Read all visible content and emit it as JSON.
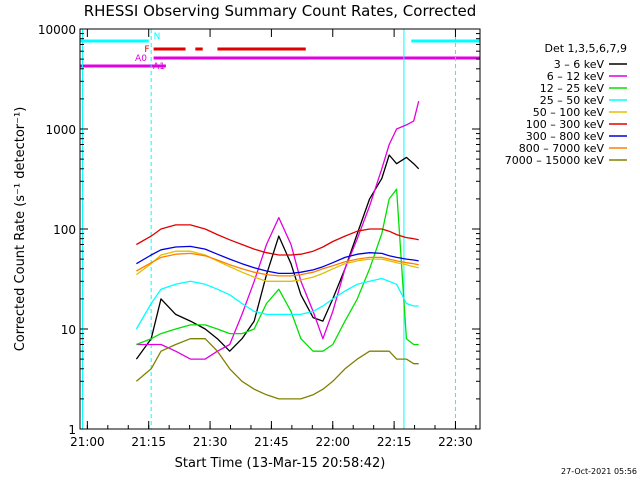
{
  "chart_data": {
    "type": "line",
    "title": "RHESSI Observing Summary Count Rates, Corrected",
    "xlabel": "Start Time (13-Mar-15 20:58:42)",
    "ylabel": "Corrected Count Rate (s⁻¹ detector⁻¹)",
    "yscale": "log",
    "ylim": [
      1,
      10000
    ],
    "xlim_minutes": [
      20.97,
      22.6
    ],
    "x_tick_labels": [
      "21:00",
      "21:15",
      "21:30",
      "21:45",
      "22:00",
      "22:15",
      "22:30"
    ],
    "y_tick_labels": [
      "1",
      "10",
      "100",
      "1000",
      "10000"
    ],
    "timestamp": "27-Oct-2021 05:56",
    "legend": {
      "title": "Det 1,3,5,6,7,9",
      "position": "right",
      "entries": [
        {
          "label": "3 – 6 keV",
          "color": "#000000"
        },
        {
          "label": "6 – 12 keV",
          "color": "#e000e0"
        },
        {
          "label": "12 – 25 keV",
          "color": "#00e000"
        },
        {
          "label": "25 – 50 keV",
          "color": "#00ffff"
        },
        {
          "label": "50 – 100 keV",
          "color": "#e0c000"
        },
        {
          "label": "100 – 300 keV",
          "color": "#e00000"
        },
        {
          "label": "300 – 800 keV",
          "color": "#0000e0"
        },
        {
          "label": "800 – 7000 keV",
          "color": "#ff8000"
        },
        {
          "label": "7000 – 15000 keV",
          "color": "#808000"
        }
      ]
    },
    "flag_bars": [
      {
        "label": "N",
        "color": "#00ffff",
        "segments": [
          [
            20.97,
            21.25
          ],
          [
            22.32,
            22.6
          ]
        ]
      },
      {
        "label": "F",
        "color": "#e00000",
        "segments": [
          [
            21.27,
            21.4
          ],
          [
            21.44,
            21.47
          ],
          [
            21.53,
            21.89
          ]
        ]
      },
      {
        "label": "A0",
        "color": "#e000e0",
        "segments": [
          [
            21.27,
            22.6
          ]
        ]
      },
      {
        "label": "A1",
        "color": "#e000e0",
        "segments": [
          [
            20.97,
            21.32
          ]
        ]
      }
    ],
    "vertical_markers": [
      {
        "x": 20.98,
        "color": "#00ffff",
        "style": "solid"
      },
      {
        "x": 21.26,
        "color": "#00ffff",
        "style": "dashed"
      },
      {
        "x": 22.29,
        "color": "#00ffff",
        "style": "solid"
      },
      {
        "x": 22.5,
        "color": "#00ffff",
        "style": "dashed"
      }
    ],
    "series": [
      {
        "name": "3 – 6 keV",
        "color": "#000000",
        "x": [
          21.2,
          21.26,
          21.3,
          21.36,
          21.42,
          21.48,
          21.53,
          21.58,
          21.63,
          21.68,
          21.73,
          21.78,
          21.83,
          21.87,
          21.92,
          21.96,
          22.0,
          22.05,
          22.1,
          22.15,
          22.2,
          22.23,
          22.26,
          22.3,
          22.33,
          22.35
        ],
        "y": [
          5,
          8,
          20,
          14,
          12,
          10,
          8,
          6,
          8,
          12,
          35,
          85,
          45,
          22,
          13,
          12,
          20,
          40,
          90,
          200,
          320,
          550,
          450,
          520,
          450,
          400
        ]
      },
      {
        "name": "6 – 12 keV",
        "color": "#e000e0",
        "x": [
          21.2,
          21.26,
          21.3,
          21.36,
          21.42,
          21.48,
          21.53,
          21.58,
          21.63,
          21.68,
          21.73,
          21.78,
          21.83,
          21.87,
          21.92,
          21.96,
          22.0,
          22.05,
          22.1,
          22.15,
          22.2,
          22.23,
          22.26,
          22.3,
          22.33,
          22.35
        ],
        "y": [
          7,
          7,
          7,
          6,
          5,
          5,
          6,
          7,
          14,
          30,
          70,
          130,
          70,
          30,
          15,
          8,
          15,
          40,
          80,
          170,
          400,
          700,
          1000,
          1100,
          1200,
          1900
        ]
      },
      {
        "name": "12 – 25 keV",
        "color": "#00e000",
        "x": [
          21.2,
          21.26,
          21.3,
          21.36,
          21.42,
          21.48,
          21.53,
          21.58,
          21.63,
          21.68,
          21.73,
          21.78,
          21.83,
          21.87,
          21.92,
          21.96,
          22.0,
          22.05,
          22.1,
          22.15,
          22.2,
          22.23,
          22.26,
          22.3,
          22.33,
          22.35
        ],
        "y": [
          7,
          8,
          9,
          10,
          11,
          11,
          10,
          9,
          9,
          10,
          18,
          25,
          15,
          8,
          6,
          6,
          7,
          12,
          20,
          40,
          90,
          200,
          250,
          8,
          7,
          7
        ]
      },
      {
        "name": "25 – 50 keV",
        "color": "#00ffff",
        "x": [
          21.2,
          21.26,
          21.3,
          21.36,
          21.42,
          21.48,
          21.53,
          21.58,
          21.63,
          21.68,
          21.73,
          21.78,
          21.83,
          21.87,
          21.92,
          21.96,
          22.0,
          22.05,
          22.1,
          22.15,
          22.2,
          22.23,
          22.26,
          22.3,
          22.33,
          22.35
        ],
        "y": [
          10,
          18,
          25,
          28,
          30,
          28,
          25,
          22,
          18,
          15,
          14,
          14,
          14,
          14,
          15,
          17,
          20,
          24,
          28,
          30,
          32,
          30,
          28,
          18,
          17,
          17
        ]
      },
      {
        "name": "50 – 100 keV",
        "color": "#e0c000",
        "x": [
          21.2,
          21.26,
          21.3,
          21.36,
          21.42,
          21.48,
          21.53,
          21.58,
          21.63,
          21.68,
          21.73,
          21.78,
          21.83,
          21.87,
          21.92,
          21.96,
          22.0,
          22.05,
          22.1,
          22.15,
          22.2,
          22.23,
          22.26,
          22.3,
          22.33,
          22.35
        ],
        "y": [
          35,
          45,
          55,
          60,
          60,
          55,
          48,
          42,
          37,
          33,
          30,
          30,
          30,
          31,
          33,
          36,
          40,
          45,
          48,
          50,
          50,
          48,
          46,
          44,
          42,
          41
        ]
      },
      {
        "name": "100 – 300 keV",
        "color": "#e00000",
        "x": [
          21.2,
          21.26,
          21.3,
          21.36,
          21.42,
          21.48,
          21.53,
          21.58,
          21.63,
          21.68,
          21.73,
          21.78,
          21.83,
          21.87,
          21.92,
          21.96,
          22.0,
          22.05,
          22.1,
          22.15,
          22.2,
          22.23,
          22.26,
          22.3,
          22.33,
          22.35
        ],
        "y": [
          70,
          85,
          100,
          110,
          110,
          100,
          88,
          78,
          70,
          63,
          58,
          55,
          55,
          56,
          60,
          66,
          75,
          85,
          95,
          100,
          100,
          95,
          88,
          82,
          80,
          78
        ]
      },
      {
        "name": "300 – 800 keV",
        "color": "#0000e0",
        "x": [
          21.2,
          21.26,
          21.3,
          21.36,
          21.42,
          21.48,
          21.53,
          21.58,
          21.63,
          21.68,
          21.73,
          21.78,
          21.83,
          21.87,
          21.92,
          21.96,
          22.0,
          22.05,
          22.1,
          22.15,
          22.2,
          22.23,
          22.26,
          22.3,
          22.33,
          22.35
        ],
        "y": [
          45,
          55,
          62,
          66,
          67,
          63,
          56,
          50,
          45,
          41,
          38,
          36,
          36,
          37,
          39,
          42,
          46,
          52,
          56,
          58,
          57,
          54,
          52,
          50,
          49,
          48
        ]
      },
      {
        "name": "800 – 7000 keV",
        "color": "#ff8000",
        "x": [
          21.2,
          21.26,
          21.3,
          21.36,
          21.42,
          21.48,
          21.53,
          21.58,
          21.63,
          21.68,
          21.73,
          21.78,
          21.83,
          21.87,
          21.92,
          21.96,
          22.0,
          22.05,
          22.1,
          22.15,
          22.2,
          22.23,
          22.26,
          22.3,
          22.33,
          22.35
        ],
        "y": [
          38,
          46,
          52,
          56,
          57,
          54,
          49,
          44,
          40,
          37,
          35,
          34,
          34,
          35,
          37,
          40,
          43,
          47,
          50,
          52,
          52,
          50,
          48,
          46,
          45,
          44
        ]
      },
      {
        "name": "7000 – 15000 keV",
        "color": "#808000",
        "x": [
          21.2,
          21.26,
          21.3,
          21.36,
          21.42,
          21.48,
          21.53,
          21.58,
          21.63,
          21.68,
          21.73,
          21.78,
          21.83,
          21.87,
          21.92,
          21.96,
          22.0,
          22.05,
          22.1,
          22.15,
          22.2,
          22.23,
          22.26,
          22.3,
          22.33,
          22.35
        ],
        "y": [
          3,
          4,
          6,
          7,
          8,
          8,
          6,
          4,
          3,
          2.5,
          2.2,
          2,
          2,
          2,
          2.2,
          2.5,
          3,
          4,
          5,
          6,
          6,
          6,
          5,
          5,
          4.5,
          4.5
        ]
      }
    ]
  }
}
